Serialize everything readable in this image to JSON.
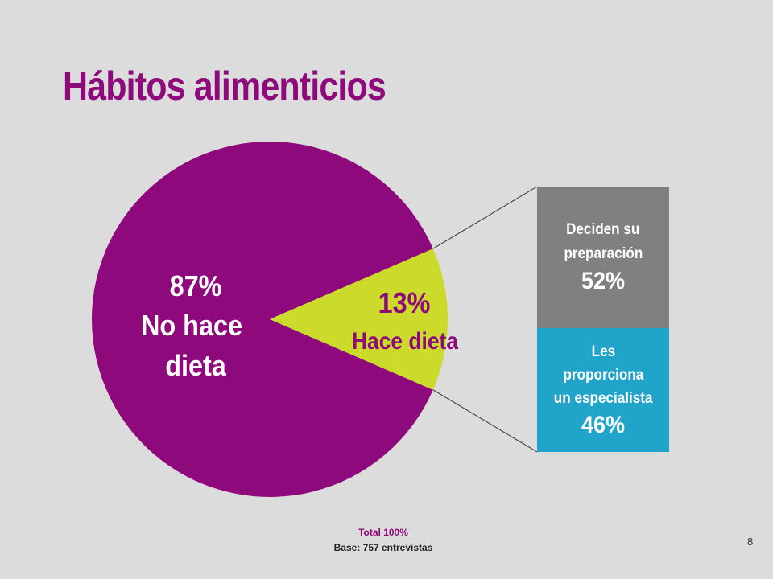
{
  "title": "Hábitos alimenticios",
  "chart_data": {
    "type": "pie",
    "title": "Hábitos alimenticios",
    "slices": [
      {
        "label": "No hace dieta",
        "value": 87,
        "display": [
          "87%",
          "No hace",
          "dieta"
        ],
        "color": "#8e0a7c"
      },
      {
        "label": "Hace dieta",
        "value": 13,
        "display": [
          "13%",
          "Hace dieta"
        ],
        "color": "#ccdb2b"
      }
    ],
    "breakdown": {
      "of": "Hace dieta",
      "type": "stacked-bar",
      "segments": [
        {
          "label": "Deciden su preparación",
          "lines": [
            "Deciden su",
            "preparación"
          ],
          "value": 52,
          "display": "52%",
          "color": "#808080"
        },
        {
          "label": "Les proporciona un especialista",
          "lines": [
            "Les",
            "proporciona",
            "un especialista"
          ],
          "value": 46,
          "display": "46%",
          "color": "#21a4c9"
        }
      ]
    }
  },
  "footer": {
    "total": "Total 100%",
    "base": "Base:  757 entrevistas"
  },
  "page_number": "8"
}
